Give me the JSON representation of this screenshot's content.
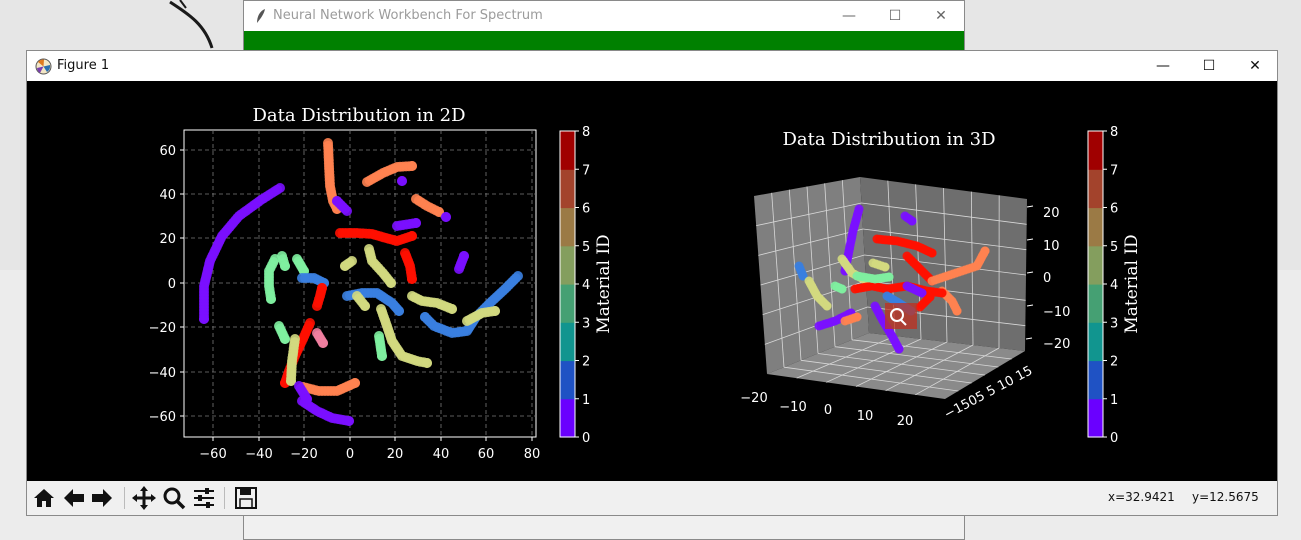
{
  "back_window": {
    "title": "Neural Network Workbench For Spectrum"
  },
  "figure_window": {
    "title": "Figure 1"
  },
  "window_controls": {
    "minimize": "—",
    "maximize": "☐",
    "close": "✕"
  },
  "plot2d": {
    "title": "Data Distribution in 2D",
    "xticks": [
      "−60",
      "−40",
      "−20",
      "0",
      "20",
      "40",
      "60",
      "80"
    ],
    "yticks": [
      "60",
      "40",
      "20",
      "0",
      "−20",
      "−40",
      "−60"
    ]
  },
  "plot3d": {
    "title": "Data Distribution in 3D",
    "xticks": [
      "−20",
      "−10",
      "0",
      "10",
      "20"
    ],
    "yticks": [
      "−15",
      "0",
      "5",
      "10",
      "15"
    ],
    "yticks_glyphs": "−1505 5 10 15",
    "zticks": [
      "20",
      "10",
      "0",
      "−10",
      "−20"
    ]
  },
  "colorbar": {
    "label": "Material ID",
    "ticks": [
      "8",
      "7",
      "6",
      "5",
      "4",
      "3",
      "2",
      "1",
      "0"
    ],
    "colors": [
      "#6a00ff",
      "#1f52c4",
      "#11958f",
      "#45a073",
      "#849e5e",
      "#9b7a45",
      "#a3432c",
      "#a00000"
    ]
  },
  "chart_data": [
    {
      "type": "scatter",
      "title": "Data Distribution in 2D",
      "xlim": [
        -72,
        82
      ],
      "ylim": [
        -70,
        70
      ],
      "grid": true,
      "color_scale": "rainbow (Material ID 0–8)"
    },
    {
      "type": "scatter",
      "title": "Data Distribution in 3D",
      "xlim": [
        -20,
        20
      ],
      "ylim": [
        -15,
        15
      ],
      "zlim": [
        -25,
        25
      ],
      "grid": true,
      "color_scale": "rainbow (Material ID 0–8)"
    }
  ],
  "toolbar": {
    "icons": [
      "home-icon",
      "back-arrow-icon",
      "forward-arrow-icon",
      "pan-icon",
      "zoom-icon",
      "configure-icon",
      "save-icon"
    ],
    "x_readout": "x=32.9421",
    "y_readout": "y=12.5675"
  }
}
